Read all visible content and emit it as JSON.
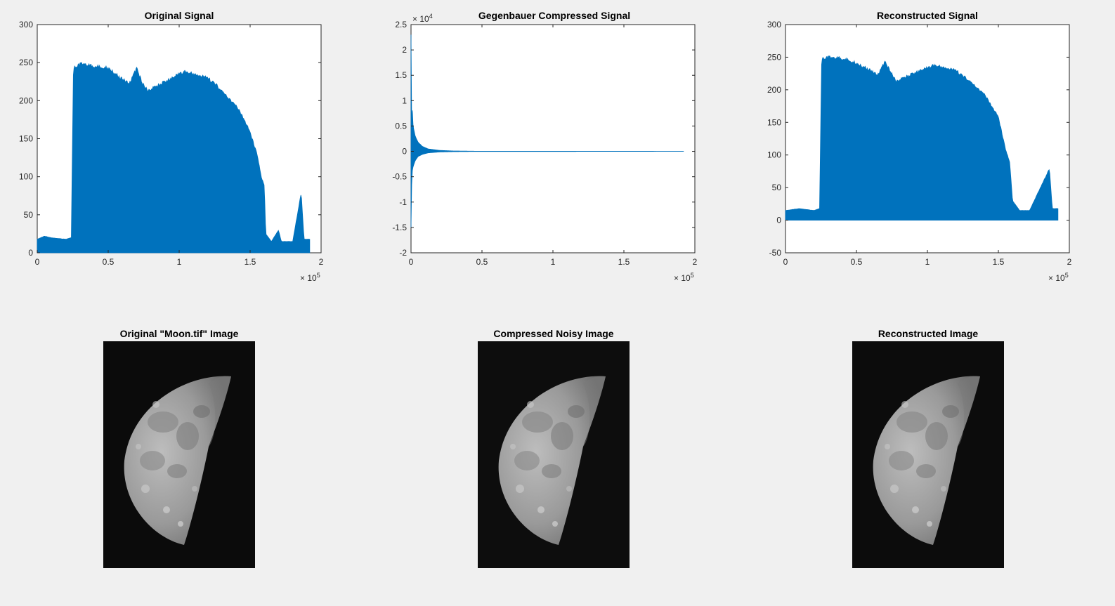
{
  "chart_data": [
    {
      "type": "line",
      "title": "Original Signal",
      "xlim": [
        0,
        200000
      ],
      "ylim": [
        0,
        300
      ],
      "xticks": [
        0,
        50000,
        100000,
        150000,
        200000
      ],
      "xtick_labels": [
        "0",
        "0.5",
        "1",
        "1.5",
        "2"
      ],
      "yticks": [
        0,
        50,
        100,
        150,
        200,
        250,
        300
      ],
      "ytick_labels": [
        "0",
        "50",
        "100",
        "150",
        "200",
        "250",
        "300"
      ],
      "x_exponent": {
        "base": "× 10",
        "power": "5"
      },
      "y_exponent": null,
      "color": "#0072bd",
      "x_max": 192000,
      "envelope": [
        [
          0,
          18
        ],
        [
          5000,
          22
        ],
        [
          10000,
          20
        ],
        [
          20000,
          18
        ],
        [
          24000,
          20
        ],
        [
          25500,
          245
        ],
        [
          28000,
          248
        ],
        [
          33000,
          252
        ],
        [
          38000,
          248
        ],
        [
          50000,
          246
        ],
        [
          55000,
          238
        ],
        [
          60000,
          230
        ],
        [
          65000,
          225
        ],
        [
          70000,
          245
        ],
        [
          74000,
          225
        ],
        [
          78000,
          215
        ],
        [
          85000,
          222
        ],
        [
          95000,
          232
        ],
        [
          100000,
          238
        ],
        [
          105000,
          240
        ],
        [
          115000,
          235
        ],
        [
          120000,
          232
        ],
        [
          125000,
          225
        ],
        [
          130000,
          215
        ],
        [
          135000,
          205
        ],
        [
          140000,
          195
        ],
        [
          145000,
          180
        ],
        [
          150000,
          160
        ],
        [
          155000,
          130
        ],
        [
          158000,
          100
        ],
        [
          160000,
          90
        ],
        [
          161000,
          25
        ],
        [
          165000,
          15
        ],
        [
          170000,
          30
        ],
        [
          172000,
          15
        ],
        [
          180000,
          15
        ],
        [
          186000,
          80
        ],
        [
          188000,
          18
        ],
        [
          192000,
          18
        ]
      ],
      "floor": [
        [
          0,
          0
        ],
        [
          192000,
          0
        ]
      ]
    },
    {
      "type": "line",
      "title": "Gegenbauer Compressed Signal",
      "xlim": [
        0,
        200000
      ],
      "ylim": [
        -20000,
        25000
      ],
      "xticks": [
        0,
        50000,
        100000,
        150000,
        200000
      ],
      "xtick_labels": [
        "0",
        "0.5",
        "1",
        "1.5",
        "2"
      ],
      "yticks": [
        -20000,
        -15000,
        -10000,
        -5000,
        0,
        5000,
        10000,
        15000,
        20000,
        25000
      ],
      "ytick_labels": [
        "-2",
        "-1.5",
        "-1",
        "-0.5",
        "0",
        "0.5",
        "1",
        "1.5",
        "2",
        "2.5"
      ],
      "x_exponent": {
        "base": "× 10",
        "power": "5"
      },
      "y_exponent": {
        "base": "× 10",
        "power": "4"
      },
      "color": "#0072bd",
      "x_max": 192000,
      "envelope": [
        [
          0,
          23000
        ],
        [
          300,
          5000
        ],
        [
          800,
          9000
        ],
        [
          1500,
          5000
        ],
        [
          3000,
          3000
        ],
        [
          5000,
          1800
        ],
        [
          8000,
          1000
        ],
        [
          12000,
          500
        ],
        [
          20000,
          200
        ],
        [
          30000,
          80
        ],
        [
          45000,
          30
        ],
        [
          192000,
          10
        ]
      ],
      "floor": [
        [
          0,
          -15000
        ],
        [
          300,
          -8000
        ],
        [
          800,
          -4000
        ],
        [
          1500,
          -3000
        ],
        [
          3000,
          -1800
        ],
        [
          5000,
          -1000
        ],
        [
          8000,
          -600
        ],
        [
          12000,
          -300
        ],
        [
          20000,
          -120
        ],
        [
          30000,
          -60
        ],
        [
          45000,
          -20
        ],
        [
          192000,
          -10
        ]
      ]
    },
    {
      "type": "line",
      "title": "Reconstructed Signal",
      "xlim": [
        0,
        200000
      ],
      "ylim": [
        -50,
        300
      ],
      "xticks": [
        0,
        50000,
        100000,
        150000,
        200000
      ],
      "xtick_labels": [
        "0",
        "0.5",
        "1",
        "1.5",
        "2"
      ],
      "yticks": [
        -50,
        0,
        50,
        100,
        150,
        200,
        250,
        300
      ],
      "ytick_labels": [
        "-50",
        "0",
        "50",
        "100",
        "150",
        "200",
        "250",
        "300"
      ],
      "x_exponent": {
        "base": "× 10",
        "power": "5"
      },
      "y_exponent": null,
      "color": "#0072bd",
      "x_max": 192000,
      "envelope": [
        [
          0,
          15
        ],
        [
          10000,
          18
        ],
        [
          20000,
          15
        ],
        [
          24000,
          18
        ],
        [
          25500,
          250
        ],
        [
          33000,
          253
        ],
        [
          45000,
          248
        ],
        [
          55000,
          238
        ],
        [
          65000,
          225
        ],
        [
          70000,
          245
        ],
        [
          78000,
          215
        ],
        [
          95000,
          232
        ],
        [
          105000,
          240
        ],
        [
          120000,
          232
        ],
        [
          130000,
          215
        ],
        [
          140000,
          195
        ],
        [
          150000,
          160
        ],
        [
          155000,
          110
        ],
        [
          158000,
          90
        ],
        [
          160000,
          30
        ],
        [
          165000,
          15
        ],
        [
          172000,
          15
        ],
        [
          186000,
          80
        ],
        [
          188000,
          18
        ],
        [
          192000,
          18
        ]
      ],
      "floor": [
        [
          0,
          0
        ],
        [
          192000,
          0
        ]
      ]
    }
  ],
  "images": [
    {
      "title": "Original \"Moon.tif\" Image",
      "variant": "original"
    },
    {
      "title": "Compressed Noisy Image",
      "variant": "noisy"
    },
    {
      "title": "Reconstructed Image",
      "variant": "reconstructed"
    }
  ]
}
